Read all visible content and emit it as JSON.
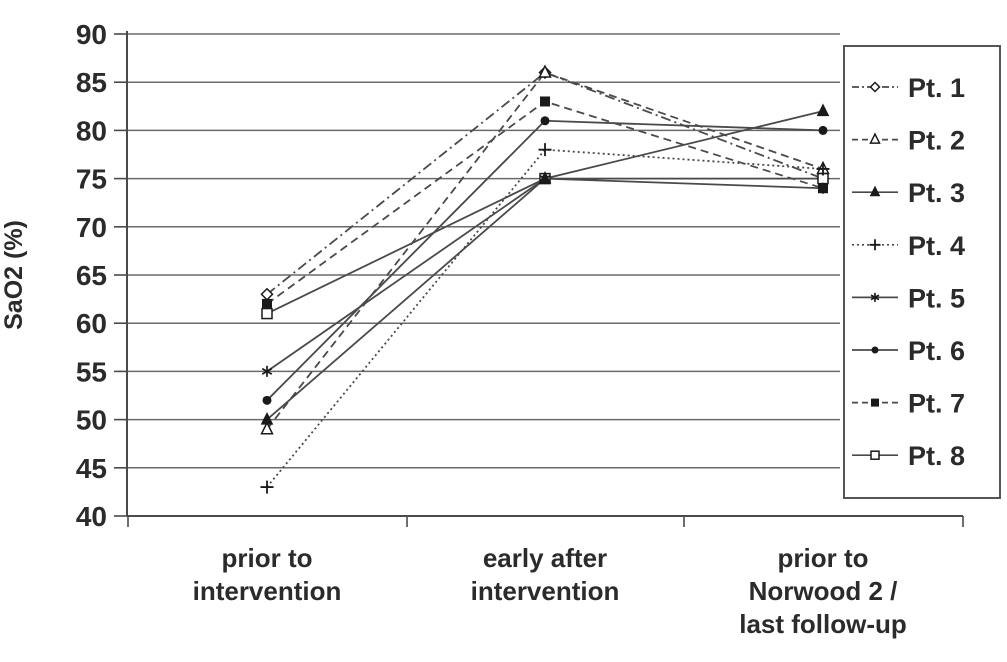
{
  "chart_data": {
    "type": "line",
    "title": "",
    "xlabel": "",
    "ylabel": "SaO2 (%)",
    "ylim": [
      40,
      90
    ],
    "yticks": [
      90,
      85,
      80,
      75,
      70,
      65,
      60,
      55,
      50,
      45,
      40
    ],
    "grid": "horizontal",
    "legend_position": "right",
    "categories": [
      {
        "label": "prior to intervention",
        "lines": [
          "prior to",
          "intervention"
        ]
      },
      {
        "label": "early after intervention",
        "lines": [
          "early after",
          "intervention"
        ]
      },
      {
        "label": "prior to Norwood 2 / last follow-up",
        "lines": [
          "prior to",
          "Norwood 2 /",
          "last follow-up"
        ]
      }
    ],
    "series": [
      {
        "name": "Pt. 1",
        "values": [
          63,
          86,
          75
        ],
        "marker": "open-diamond",
        "line_style": "dashdot"
      },
      {
        "name": "Pt. 2",
        "values": [
          49,
          86,
          76
        ],
        "marker": "open-triangle",
        "line_style": "dashed"
      },
      {
        "name": "Pt. 3",
        "values": [
          50,
          75,
          82
        ],
        "marker": "filled-triangle",
        "line_style": "solid"
      },
      {
        "name": "Pt. 4",
        "values": [
          43,
          78,
          76
        ],
        "marker": "plus",
        "line_style": "dotted"
      },
      {
        "name": "Pt. 5",
        "values": [
          55,
          75,
          74
        ],
        "marker": "asterisk",
        "line_style": "solid"
      },
      {
        "name": "Pt. 6",
        "values": [
          52,
          81,
          80
        ],
        "marker": "filled-circle",
        "line_style": "solid"
      },
      {
        "name": "Pt. 7",
        "values": [
          62,
          83,
          74
        ],
        "marker": "filled-square",
        "line_style": "dashed"
      },
      {
        "name": "Pt. 8",
        "values": [
          61,
          75,
          75
        ],
        "marker": "open-square",
        "line_style": "solid"
      }
    ],
    "colors": {
      "background": "#ffffff",
      "grid": "#6a6a6a",
      "axis": "#4a4a4a",
      "line": "#4a4a4a",
      "marker": "#1a1a1a",
      "text": "#2b2b2b",
      "legend_border": "#555555"
    }
  }
}
